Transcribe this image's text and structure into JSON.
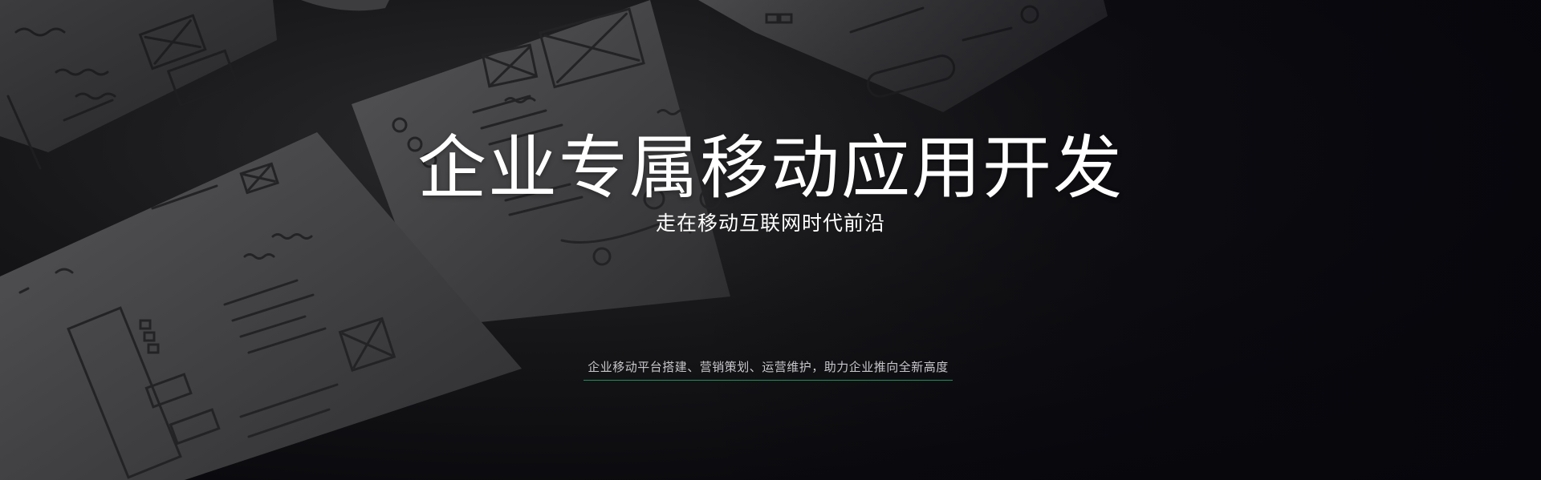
{
  "banner": {
    "headline": "企业专属移动应用开发",
    "subheadline": "走在移动互联网时代前沿",
    "tagline": "企业移动平台搭建、营销策划、运营维护，助力企业推向全新高度",
    "accent_color": "#1f8f5a"
  }
}
